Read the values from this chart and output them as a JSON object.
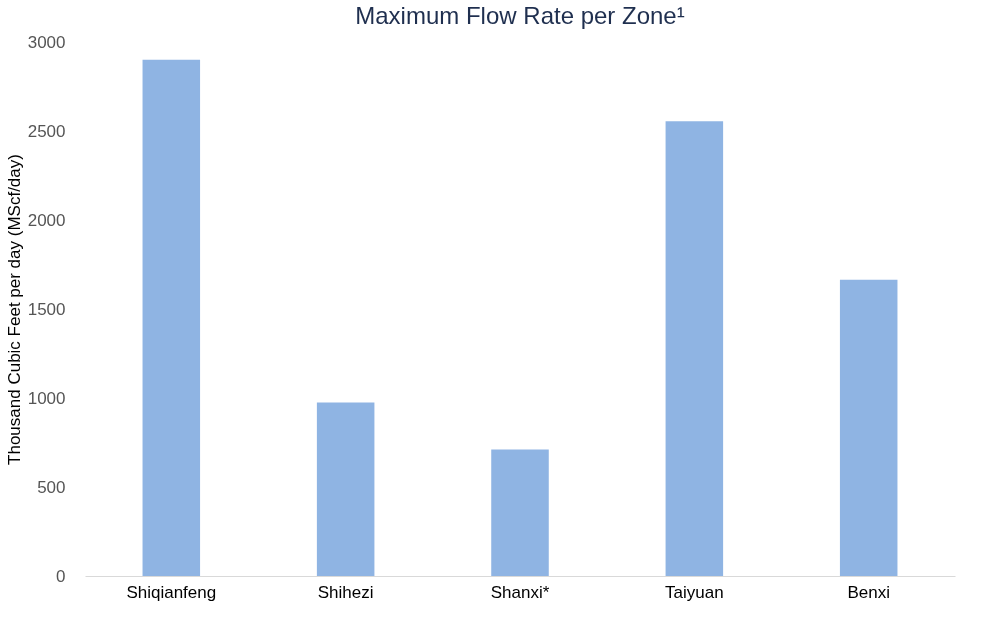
{
  "chart_data": {
    "type": "bar",
    "title": "Maximum Flow Rate per Zone¹",
    "ylabel": "Thousand Cubic Feet per day (MScf/day)",
    "categories": [
      "Shiqianfeng",
      "Shihezi",
      "Shanxi*",
      "Taiyuan",
      "Benxi"
    ],
    "values": [
      2900,
      975,
      710,
      2555,
      1665
    ],
    "color": "#8fb4e3",
    "ylim": [
      0,
      3000
    ],
    "yticks": [
      0,
      500,
      1000,
      1500,
      2000,
      2500,
      3000
    ],
    "grid": false
  }
}
